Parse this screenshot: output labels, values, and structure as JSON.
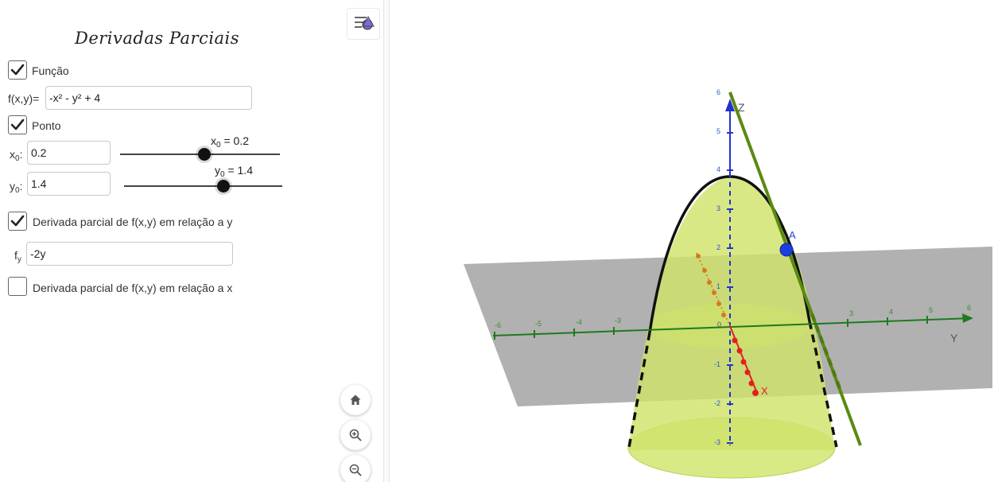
{
  "panel": {
    "title": "Derivadas Parciais",
    "funcao": {
      "checked": true,
      "label": "Função"
    },
    "f_label": "f(x,y)=",
    "f_value": "-x² - y² + 4",
    "ponto": {
      "checked": true,
      "label": "Ponto"
    },
    "x0": {
      "label_main": "x",
      "label_sub": "0",
      "value": "0.2",
      "caption_main": "x",
      "caption_sub": "0",
      "caption_rest": " = 0.2",
      "slider_fraction": 0.525
    },
    "y0": {
      "label_main": "y",
      "label_sub": "0",
      "value": "1.4",
      "caption_main": "y",
      "caption_sub": "0",
      "caption_rest": " = 1.4",
      "slider_fraction": 0.63
    },
    "deriv_y": {
      "checked": true,
      "label": "Derivada parcial de f(x,y) em relação a y"
    },
    "fy_label_main": "f",
    "fy_label_sub": "y",
    "fy_value": "-2y",
    "deriv_x": {
      "checked": false,
      "label": "Derivada parcial de f(x,y) em relação a x"
    }
  },
  "controls": {
    "stylebar_icon": "stylebar-toggle-icon",
    "home_icon": "home-icon",
    "zoom_in_icon": "zoom-in-icon",
    "zoom_out_icon": "zoom-out-icon"
  },
  "graphics": {
    "z_axis_label": "Z",
    "y_axis_label": "Y",
    "x_axis_label": "X",
    "point_label": "A",
    "z_ticks": [
      "6",
      "5",
      "4",
      "3",
      "2",
      "1",
      "-1",
      "-2",
      "-3"
    ],
    "y_ticks_neg": [
      "-6",
      "-5",
      "-4",
      "-3"
    ],
    "y_ticks_pos": [
      "3",
      "4",
      "5",
      "6"
    ],
    "origin_label": "0",
    "colors": {
      "surface": "#c8e06a",
      "plane": "#a8a8a8",
      "z_axis": "#2233cc",
      "y_axis": "#1e7a1e",
      "x_axis": "#e02020",
      "tangent": "#5a8a10",
      "point": "#1a3fe0"
    }
  }
}
